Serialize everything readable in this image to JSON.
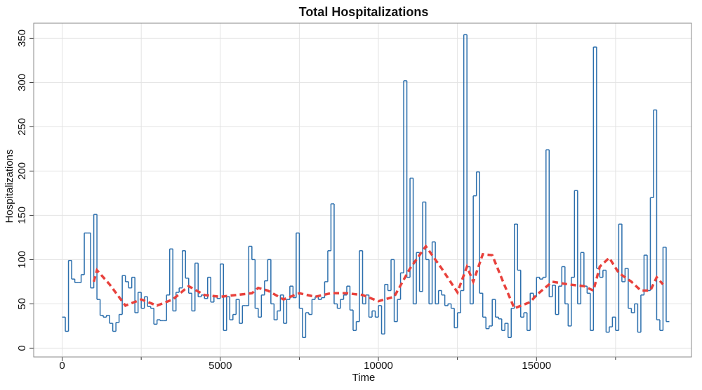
{
  "chart_data": {
    "type": "line",
    "title": "Total Hospitalizations",
    "x_label": "Time",
    "y_label": "Hospitalizations",
    "xlim": [
      -900,
      19900
    ],
    "ylim": [
      -10,
      367
    ],
    "xticks": [
      0,
      5000,
      10000,
      15000
    ],
    "x_minor_ticks": [
      2500,
      7500,
      12500,
      17500
    ],
    "yticks": [
      0,
      50,
      100,
      150,
      200,
      250,
      300,
      350
    ],
    "grid": true,
    "series": [
      {
        "color": "#2c6fad",
        "style": "step",
        "x": [
          0,
          100,
          200,
          300,
          400,
          500,
          600,
          700,
          800,
          900,
          1000,
          1100,
          1200,
          1300,
          1400,
          1500,
          1600,
          1700,
          1800,
          1900,
          2000,
          2100,
          2200,
          2300,
          2400,
          2500,
          2600,
          2700,
          2800,
          2900,
          3000,
          3100,
          3200,
          3300,
          3400,
          3500,
          3600,
          3700,
          3800,
          3900,
          4000,
          4100,
          4200,
          4300,
          4400,
          4500,
          4600,
          4700,
          4800,
          4900,
          5000,
          5100,
          5200,
          5300,
          5400,
          5500,
          5600,
          5700,
          5800,
          5900,
          6000,
          6100,
          6200,
          6300,
          6400,
          6500,
          6600,
          6700,
          6800,
          6900,
          7000,
          7100,
          7200,
          7300,
          7400,
          7500,
          7600,
          7700,
          7800,
          7900,
          8000,
          8100,
          8200,
          8300,
          8400,
          8500,
          8600,
          8700,
          8800,
          8900,
          9000,
          9100,
          9200,
          9300,
          9400,
          9500,
          9600,
          9700,
          9800,
          9900,
          10000,
          10100,
          10200,
          10300,
          10400,
          10500,
          10600,
          10700,
          10800,
          10900,
          11000,
          11100,
          11200,
          11300,
          11400,
          11500,
          11600,
          11700,
          11800,
          11900,
          12000,
          12100,
          12200,
          12300,
          12400,
          12500,
          12600,
          12700,
          12800,
          12900,
          13000,
          13100,
          13200,
          13300,
          13400,
          13500,
          13600,
          13700,
          13800,
          13900,
          14000,
          14100,
          14200,
          14300,
          14400,
          14500,
          14600,
          14700,
          14800,
          14900,
          15000,
          15100,
          15200,
          15300,
          15400,
          15500,
          15600,
          15700,
          15800,
          15900,
          16000,
          16100,
          16200,
          16300,
          16400,
          16500,
          16600,
          16700,
          16800,
          16900,
          17000,
          17100,
          17200,
          17300,
          17400,
          17500,
          17600,
          17700,
          17800,
          17900,
          18000,
          18100,
          18200,
          18300,
          18400,
          18500,
          18600,
          18700,
          18800,
          18900,
          19000,
          19100
        ],
        "values": [
          35,
          19,
          99,
          78,
          74,
          74,
          83,
          130,
          130,
          68,
          151,
          55,
          37,
          35,
          37,
          28,
          19,
          29,
          38,
          82,
          75,
          68,
          80,
          40,
          63,
          45,
          58,
          47,
          45,
          27,
          32,
          31,
          31,
          60,
          112,
          42,
          63,
          68,
          110,
          79,
          62,
          42,
          96,
          58,
          60,
          56,
          80,
          52,
          58,
          56,
          95,
          20,
          58,
          32,
          38,
          55,
          28,
          48,
          48,
          115,
          100,
          45,
          35,
          60,
          76,
          100,
          50,
          32,
          42,
          60,
          28,
          55,
          70,
          57,
          130,
          45,
          12,
          40,
          38,
          55,
          58,
          55,
          57,
          75,
          110,
          163,
          50,
          45,
          55,
          60,
          70,
          43,
          20,
          30,
          110,
          50,
          60,
          35,
          42,
          35,
          48,
          16,
          72,
          65,
          100,
          30,
          55,
          85,
          302,
          80,
          192,
          50,
          108,
          64,
          165,
          100,
          50,
          120,
          50,
          65,
          60,
          48,
          50,
          45,
          23,
          40,
          65,
          354,
          92,
          50,
          172,
          199,
          62,
          35,
          22,
          25,
          55,
          35,
          33,
          20,
          28,
          12,
          45,
          140,
          88,
          35,
          40,
          20,
          62,
          58,
          80,
          78,
          80,
          224,
          58,
          71,
          38,
          70,
          92,
          50,
          25,
          80,
          178,
          50,
          108,
          70,
          62,
          20,
          340,
          90,
          80,
          88,
          18,
          24,
          35,
          20,
          140,
          75,
          90,
          45,
          40,
          50,
          18,
          60,
          105,
          65,
          170,
          269,
          32,
          20,
          114,
          30
        ]
      },
      {
        "color": "#e8413c",
        "style": "dashed",
        "x": [
          1000,
          1100,
          1500,
          2000,
          2500,
          3000,
          3500,
          4000,
          4500,
          5000,
          5500,
          6000,
          6200,
          6500,
          7000,
          7500,
          8000,
          8500,
          9000,
          9500,
          10000,
          10500,
          11000,
          11500,
          12000,
          12500,
          12800,
          13000,
          13300,
          13600,
          14000,
          14300,
          14800,
          15000,
          15500,
          16000,
          16500,
          16800,
          17000,
          17300,
          17600,
          18000,
          18300,
          18600,
          18800,
          19000
        ],
        "values": [
          75,
          88,
          72,
          48,
          55,
          48,
          55,
          70,
          60,
          58,
          60,
          62,
          68,
          65,
          55,
          62,
          58,
          62,
          62,
          60,
          53,
          58,
          90,
          115,
          90,
          63,
          92,
          75,
          106,
          105,
          70,
          45,
          52,
          60,
          75,
          72,
          70,
          65,
          92,
          102,
          85,
          75,
          65,
          65,
          80,
          72
        ]
      }
    ]
  }
}
